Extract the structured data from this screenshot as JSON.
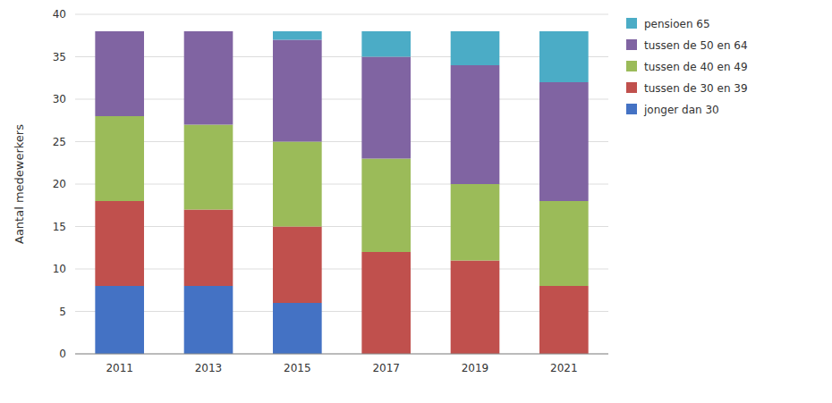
{
  "chart_data": {
    "type": "bar",
    "stacked": true,
    "categories": [
      "2011",
      "2013",
      "2015",
      "2017",
      "2019",
      "2021"
    ],
    "series": [
      {
        "name": "jonger dan 30",
        "color": "#4472c4",
        "values": [
          8,
          8,
          6,
          0,
          0,
          0
        ]
      },
      {
        "name": "tussen de 30 en 39",
        "color": "#c0504d",
        "values": [
          10,
          9,
          9,
          12,
          11,
          8
        ]
      },
      {
        "name": "tussen de 40 en 49",
        "color": "#9bbb59",
        "values": [
          10,
          10,
          10,
          11,
          9,
          10
        ]
      },
      {
        "name": "tussen de 50 en 64",
        "color": "#8064a2",
        "values": [
          10,
          11,
          12,
          12,
          14,
          14
        ]
      },
      {
        "name": "pensioen 65",
        "color": "#4bacc6",
        "values": [
          0,
          0,
          1,
          3,
          4,
          6
        ]
      }
    ],
    "ylabel": "Aantal medewerkers",
    "ylim": [
      0,
      40
    ],
    "yticks": [
      0,
      5,
      10,
      15,
      20,
      25,
      30,
      35,
      40
    ],
    "grid": true,
    "legend": "right"
  }
}
